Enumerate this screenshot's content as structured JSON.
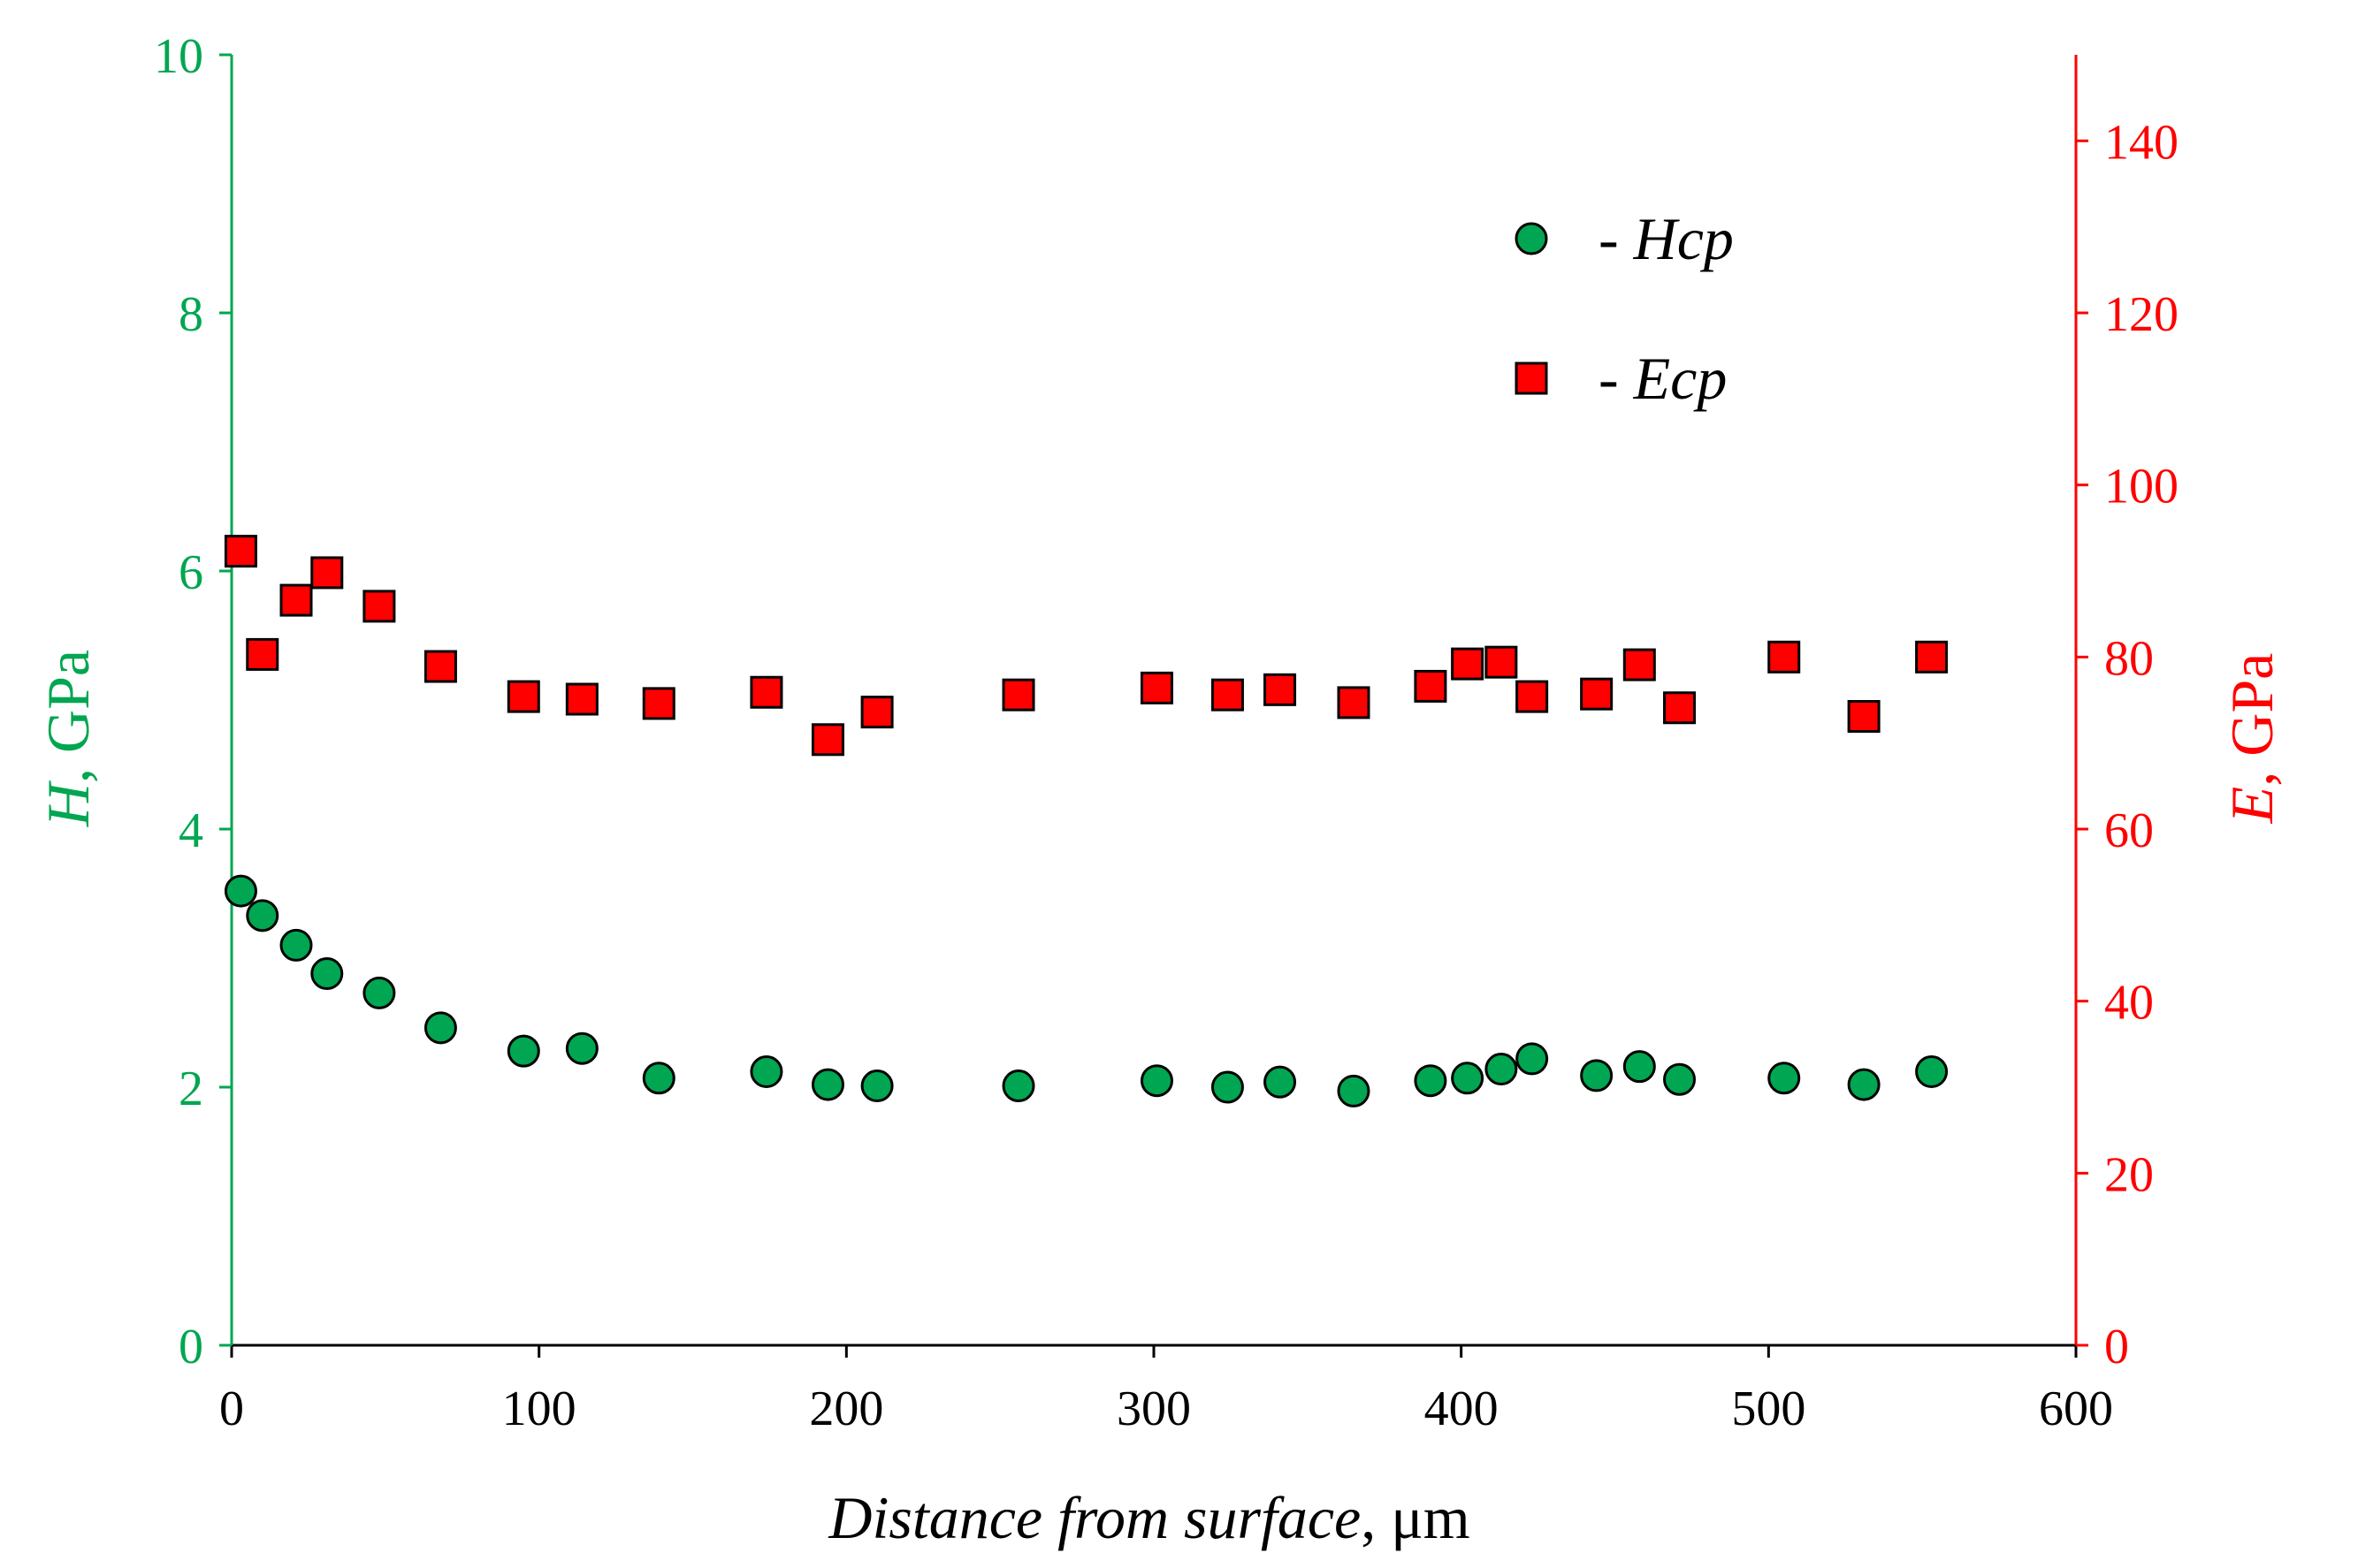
{
  "chart_data": {
    "type": "scatter",
    "title": "",
    "xlabel": {
      "italic": "Distance from surface",
      "plain": ", μm"
    },
    "ylabel_left": {
      "italic": "H",
      "plain": ", GPa"
    },
    "ylabel_right": {
      "italic": "E",
      "plain": ", GPa"
    },
    "xlim": [
      0,
      600
    ],
    "ylim_left": [
      0,
      10
    ],
    "ylim_right": [
      0,
      150
    ],
    "x_ticks": [
      0,
      100,
      200,
      300,
      400,
      500,
      600
    ],
    "y_left_ticks": [
      0,
      2,
      4,
      6,
      8,
      10
    ],
    "y_right_ticks": [
      0,
      20,
      40,
      60,
      80,
      100,
      120,
      140
    ],
    "legend_position": "top-right",
    "colors": {
      "left_axis": "#00a651",
      "right_axis": "#ff0000",
      "hcp_marker": "#00a651",
      "ecp_marker": "#ff0000",
      "marker_edge": "#000000"
    },
    "series": [
      {
        "name": "Hcp",
        "legend_label": "-  Hcp",
        "marker": "circle",
        "axis": "left",
        "x": [
          3,
          10,
          21,
          31,
          48,
          68,
          95,
          114,
          139,
          174,
          194,
          210,
          256,
          301,
          324,
          341,
          365,
          390,
          402,
          413,
          423,
          444,
          458,
          471,
          505,
          531,
          553
        ],
        "y": [
          3.52,
          3.33,
          3.1,
          2.88,
          2.73,
          2.46,
          2.28,
          2.3,
          2.07,
          2.12,
          2.02,
          2.01,
          2.01,
          2.05,
          2.0,
          2.04,
          1.97,
          2.05,
          2.07,
          2.14,
          2.22,
          2.09,
          2.16,
          2.06,
          2.07,
          2.02,
          2.12
        ]
      },
      {
        "name": "Ecp",
        "legend_label": "-  Ecp",
        "marker": "square",
        "axis": "right",
        "x": [
          3,
          10,
          21,
          31,
          48,
          68,
          95,
          114,
          139,
          174,
          194,
          210,
          256,
          301,
          324,
          341,
          365,
          390,
          402,
          413,
          423,
          444,
          458,
          471,
          505,
          531,
          553
        ],
        "y": [
          92.3,
          80.3,
          86.6,
          89.8,
          85.9,
          78.9,
          75.4,
          75.1,
          74.6,
          75.9,
          70.4,
          73.6,
          75.6,
          76.4,
          75.6,
          76.2,
          74.7,
          76.6,
          79.2,
          79.4,
          75.4,
          75.7,
          79.1,
          74.1,
          80.0,
          73.1,
          80.0
        ]
      }
    ]
  }
}
